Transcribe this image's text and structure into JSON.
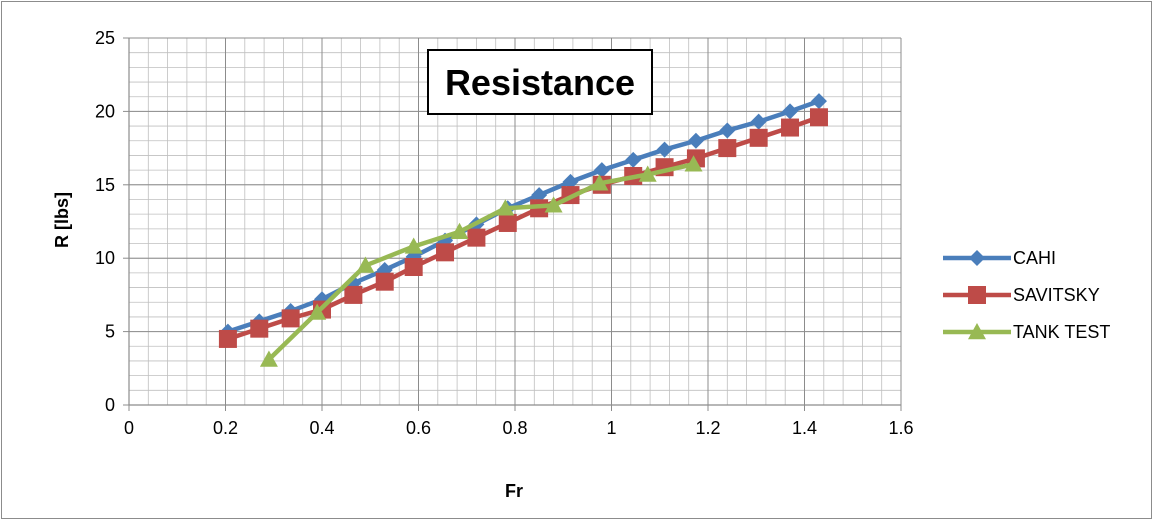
{
  "chart_data": {
    "type": "line",
    "title": "Resistance",
    "xlabel": "Fr",
    "ylabel": "R [lbs]",
    "xlim": [
      0,
      1.6
    ],
    "ylim": [
      0,
      25
    ],
    "x_ticks": [
      "0",
      "0.2",
      "0.4",
      "0.6",
      "0.8",
      "1",
      "1.2",
      "1.4",
      "1.6"
    ],
    "y_ticks": [
      "0",
      "5",
      "10",
      "15",
      "20",
      "25"
    ],
    "grid": true,
    "minor_grid": true,
    "legend_position": "right",
    "series": [
      {
        "name": "CAHI",
        "color": "#4a7ebb",
        "marker": "diamond",
        "x": [
          0.205,
          0.27,
          0.335,
          0.4,
          0.465,
          0.53,
          0.59,
          0.655,
          0.72,
          0.785,
          0.85,
          0.915,
          0.98,
          1.045,
          1.11,
          1.175,
          1.24,
          1.305,
          1.37,
          1.43
        ],
        "y": [
          5.0,
          5.7,
          6.4,
          7.2,
          8.3,
          9.2,
          10.1,
          11.2,
          12.3,
          13.4,
          14.3,
          15.2,
          16.0,
          16.7,
          17.4,
          18.0,
          18.7,
          19.3,
          20.0,
          20.7
        ]
      },
      {
        "name": "SAVITSKY",
        "color": "#be4b48",
        "marker": "square",
        "x": [
          0.205,
          0.27,
          0.335,
          0.4,
          0.465,
          0.53,
          0.59,
          0.655,
          0.72,
          0.785,
          0.85,
          0.915,
          0.98,
          1.045,
          1.11,
          1.175,
          1.24,
          1.305,
          1.37,
          1.43
        ],
        "y": [
          4.5,
          5.2,
          5.9,
          6.5,
          7.5,
          8.4,
          9.4,
          10.4,
          11.4,
          12.4,
          13.4,
          14.3,
          15.0,
          15.6,
          16.2,
          16.8,
          17.5,
          18.2,
          18.9,
          19.6
        ]
      },
      {
        "name": "TANK TEST",
        "color": "#98b954",
        "marker": "triangle",
        "x": [
          0.29,
          0.39,
          0.49,
          0.59,
          0.685,
          0.78,
          0.88,
          0.975,
          1.075,
          1.17
        ],
        "y": [
          3.1,
          6.3,
          9.5,
          10.8,
          11.8,
          13.4,
          13.6,
          15.1,
          15.7,
          16.4
        ]
      }
    ]
  }
}
